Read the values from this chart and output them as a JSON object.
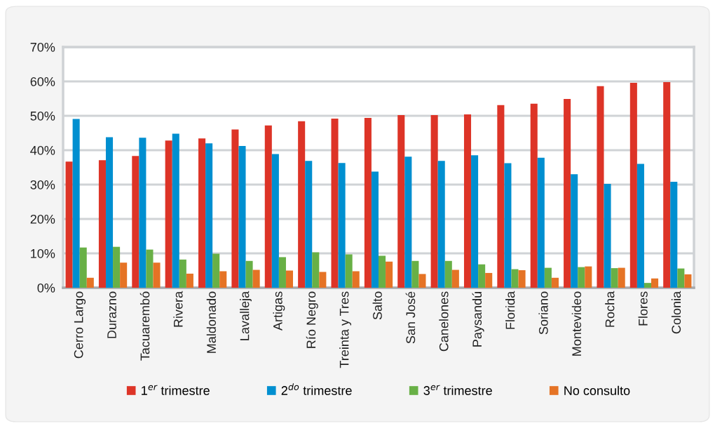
{
  "chart_data": {
    "type": "bar",
    "categories": [
      "Cerro Largo",
      "Durazno",
      "Tacuarembó",
      "Rivera",
      "Maldonado",
      "Lavalleja",
      "Artigas",
      "Río Negro",
      "Treinta y Tres",
      "Salto",
      "San José",
      "Canelones",
      "Paysandú",
      "Florida",
      "Soriano",
      "Montevideo",
      "Rocha",
      "Flores",
      "Colonia"
    ],
    "series": [
      {
        "name": "1$^{er}$ trimestre",
        "color": "#dd3427",
        "values": [
          36.7,
          37.1,
          38.3,
          42.8,
          43.4,
          46.0,
          47.2,
          48.4,
          49.2,
          49.4,
          50.2,
          50.2,
          50.4,
          53.1,
          53.5,
          54.9,
          58.6,
          59.6,
          59.8
        ]
      },
      {
        "name": "2$^{do}$ trimestre",
        "color": "#008fd0",
        "values": [
          49.1,
          43.8,
          43.6,
          44.8,
          42.0,
          41.2,
          38.9,
          36.9,
          36.3,
          33.8,
          38.1,
          36.9,
          38.5,
          36.2,
          37.8,
          33.0,
          30.2,
          36.0,
          30.8
        ]
      },
      {
        "name": "3$^{er}$ trimestre",
        "color": "#68b046",
        "values": [
          11.7,
          11.9,
          11.1,
          8.2,
          9.9,
          7.8,
          8.9,
          10.3,
          9.7,
          9.3,
          7.8,
          7.8,
          6.8,
          5.4,
          5.8,
          6.0,
          5.7,
          1.4,
          5.6
        ]
      },
      {
        "name": "No consulto",
        "color": "#e57325",
        "values": [
          2.9,
          7.3,
          7.3,
          4.1,
          4.8,
          5.2,
          5.0,
          4.6,
          4.8,
          7.6,
          4.0,
          5.2,
          4.3,
          5.1,
          2.9,
          6.2,
          5.8,
          2.7,
          3.9
        ]
      }
    ],
    "ylim": [
      0,
      70
    ],
    "yticks": [
      {
        "value": 0,
        "label": "0%"
      },
      {
        "value": 10,
        "label": "10%"
      },
      {
        "value": 20,
        "label": "20%"
      },
      {
        "value": 30,
        "label": "30%"
      },
      {
        "value": 40,
        "label": "40%"
      },
      {
        "value": 50,
        "label": "50%"
      },
      {
        "value": 60,
        "label": "60%"
      },
      {
        "value": 70,
        "label": "70%"
      }
    ],
    "grid": "y",
    "legend": "bottom"
  }
}
